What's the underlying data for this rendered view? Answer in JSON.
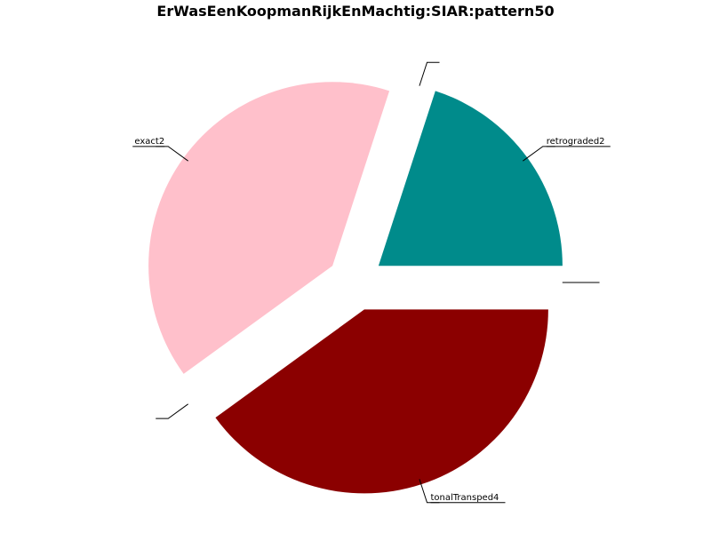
{
  "chart_data": {
    "type": "pie",
    "title": "ErWasEenKoopmanRijkEnMachtig:SIAR:pattern50",
    "slices": [
      {
        "label": "retrograded2",
        "value": 20,
        "color": "#008b8b"
      },
      {
        "label": "",
        "value": 0,
        "color": "#008b8b"
      },
      {
        "label": "exact2",
        "value": 40,
        "color": "#ffc0cb"
      },
      {
        "label": "",
        "value": 0,
        "color": "#ffc0cb"
      },
      {
        "label": "tonalTransped4",
        "value": 40,
        "color": "#8b0000"
      },
      {
        "label": "",
        "value": 0,
        "color": "#8b0000"
      }
    ]
  }
}
